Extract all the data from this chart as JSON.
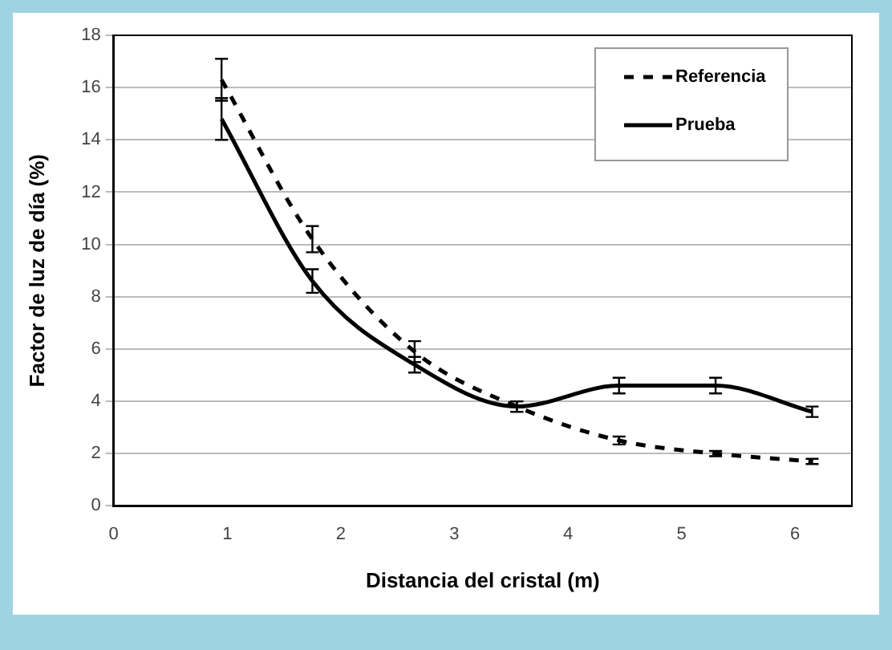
{
  "chart_data": {
    "type": "line",
    "xlabel": "Distancia del cristal (m)",
    "ylabel": "Factor de luz de día (%)",
    "xlim": [
      0,
      6.5
    ],
    "xticks": [
      0,
      1,
      2,
      3,
      4,
      5,
      6
    ],
    "ylim": [
      0,
      18
    ],
    "yticks": [
      0,
      2,
      4,
      6,
      8,
      10,
      12,
      14,
      16,
      18
    ],
    "grid": "y",
    "legend": "top right",
    "x": [
      0.95,
      1.75,
      2.65,
      3.55,
      4.45,
      5.3,
      6.15
    ],
    "series": [
      {
        "name": "Referencia",
        "color": "#000000",
        "line_style": "dashed",
        "values": [
          16.3,
          10.2,
          5.9,
          3.8,
          2.5,
          2.0,
          1.7
        ],
        "errors": [
          0.8,
          0.5,
          0.4,
          0.2,
          0.15,
          0.1,
          0.1
        ]
      },
      {
        "name": "Prueba",
        "color": "#000000",
        "line_style": "solid",
        "values": [
          14.8,
          8.6,
          5.4,
          3.8,
          4.6,
          4.6,
          3.6
        ],
        "errors": [
          0.8,
          0.45,
          0.3,
          0.2,
          0.3,
          0.3,
          0.2
        ]
      }
    ]
  }
}
